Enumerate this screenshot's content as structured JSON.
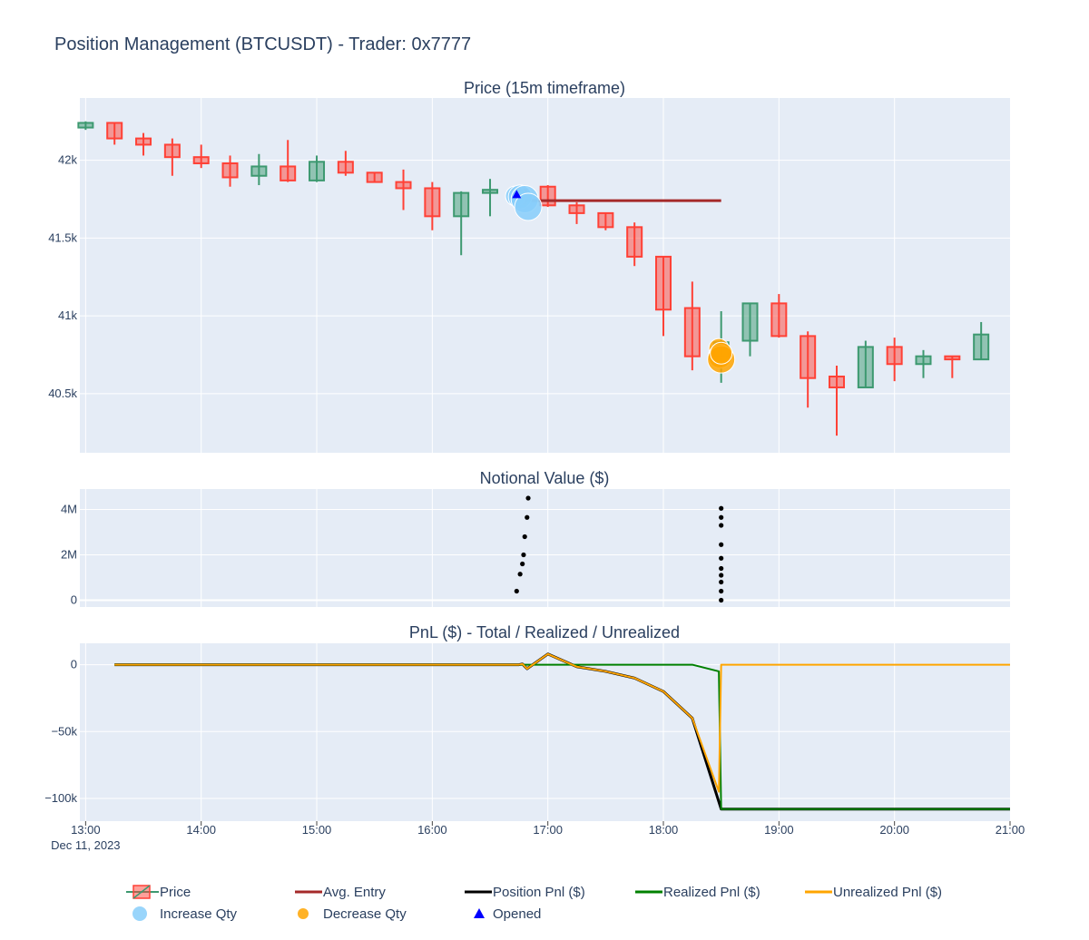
{
  "title": "Position Management (BTCUSDT) - Trader: 0x7777",
  "colors": {
    "increasing": "#3d9970",
    "increasing_fill": "rgba(61,153,112,0.5)",
    "decreasing": "#ff4136",
    "decreasing_fill": "rgba(255,65,54,0.5)",
    "avg_entry": "#a52a2a",
    "position_pnl": "#000000",
    "realized_pnl": "#008000",
    "unrealized_pnl": "#ffa500",
    "increase_qty": "#87cefa",
    "decrease_qty": "#ffa500",
    "opened": "#0000ff",
    "plot_bg": "#e5ecf6",
    "grid": "#ffffff",
    "text": "#2a3f5f"
  },
  "chart_data": {
    "x_axis": {
      "range": [
        12.95,
        21.0
      ],
      "ticks": [
        13,
        14,
        15,
        16,
        17,
        18,
        19,
        20,
        21
      ],
      "tick_labels": [
        "13:00",
        "14:00",
        "15:00",
        "16:00",
        "17:00",
        "18:00",
        "19:00",
        "20:00",
        "21:00"
      ],
      "date_label": "Dec 11, 2023"
    },
    "price": {
      "type": "candlestick",
      "title": "Price (15m timeframe)",
      "ylim": [
        40120,
        42400
      ],
      "yticks": [
        40500,
        41000,
        41500,
        42000
      ],
      "ytick_labels": [
        "40.5k",
        "41k",
        "41.5k",
        "42k"
      ],
      "candles": [
        [
          13.0,
          42210,
          42250,
          42195,
          42240
        ],
        [
          13.25,
          42240,
          42245,
          42100,
          42140
        ],
        [
          13.5,
          42140,
          42175,
          42030,
          42100
        ],
        [
          13.75,
          42100,
          42140,
          41900,
          42020
        ],
        [
          14.0,
          42020,
          42100,
          41950,
          41980
        ],
        [
          14.25,
          41980,
          42030,
          41830,
          41890
        ],
        [
          14.5,
          41900,
          42040,
          41840,
          41960
        ],
        [
          14.75,
          41960,
          42130,
          41860,
          41870
        ],
        [
          15.0,
          41870,
          42030,
          41860,
          41990
        ],
        [
          15.25,
          41990,
          42060,
          41900,
          41920
        ],
        [
          15.5,
          41920,
          41920,
          41860,
          41860
        ],
        [
          15.75,
          41860,
          41940,
          41680,
          41820
        ],
        [
          16.0,
          41820,
          41860,
          41550,
          41640
        ],
        [
          16.25,
          41640,
          41800,
          41390,
          41790
        ],
        [
          16.5,
          41790,
          41880,
          41640,
          41810
        ],
        [
          16.75,
          41810,
          41810,
          41700,
          41720
        ],
        [
          17.0,
          41830,
          41840,
          41700,
          41710
        ],
        [
          17.25,
          41710,
          41730,
          41590,
          41660
        ],
        [
          17.5,
          41660,
          41660,
          41550,
          41570
        ],
        [
          17.75,
          41570,
          41600,
          41320,
          41380
        ],
        [
          18.0,
          41380,
          41380,
          40870,
          41040
        ],
        [
          18.25,
          41050,
          41220,
          40650,
          40740
        ],
        [
          18.5,
          40740,
          41030,
          40570,
          40830
        ],
        [
          18.75,
          40840,
          41080,
          40740,
          41080
        ],
        [
          19.0,
          41080,
          41140,
          40860,
          40870
        ],
        [
          19.25,
          40870,
          40900,
          40410,
          40600
        ],
        [
          19.5,
          40610,
          40680,
          40230,
          40540
        ],
        [
          19.75,
          40540,
          40840,
          40540,
          40800
        ],
        [
          20.0,
          40800,
          40860,
          40580,
          40690
        ],
        [
          20.25,
          40690,
          40780,
          40600,
          40740
        ],
        [
          20.5,
          40740,
          40740,
          40600,
          40720
        ],
        [
          20.75,
          40720,
          40960,
          40720,
          40880
        ]
      ],
      "avg_entry": {
        "x": [
          16.75,
          18.5
        ],
        "y": [
          41740,
          41740
        ]
      },
      "increase_qty": [
        [
          16.72,
          41770,
          11
        ],
        [
          16.76,
          41765,
          13
        ],
        [
          16.8,
          41750,
          15
        ],
        [
          16.83,
          41700,
          15
        ]
      ],
      "decrease_qty": [
        [
          18.48,
          40790,
          11
        ],
        [
          18.49,
          40740,
          13
        ],
        [
          18.5,
          40720,
          15
        ],
        [
          18.5,
          40760,
          12
        ]
      ],
      "opened": [
        [
          16.73,
          41780
        ]
      ]
    },
    "notional": {
      "type": "scatter",
      "title": "Notional Value ($)",
      "ylim": [
        -300000,
        4900000
      ],
      "yticks": [
        0,
        2000000,
        4000000
      ],
      "ytick_labels": [
        "0",
        "2M",
        "4M"
      ],
      "points": [
        [
          16.73,
          400000
        ],
        [
          16.76,
          1150000
        ],
        [
          16.78,
          1600000
        ],
        [
          16.79,
          2000000
        ],
        [
          16.8,
          2800000
        ],
        [
          16.82,
          3650000
        ],
        [
          16.83,
          4500000
        ],
        [
          18.5,
          0
        ],
        [
          18.5,
          400000
        ],
        [
          18.5,
          800000
        ],
        [
          18.5,
          1100000
        ],
        [
          18.5,
          1400000
        ],
        [
          18.5,
          1850000
        ],
        [
          18.5,
          2450000
        ],
        [
          18.5,
          3300000
        ],
        [
          18.5,
          3650000
        ],
        [
          18.5,
          4050000
        ]
      ]
    },
    "pnl": {
      "type": "line",
      "title": "PnL ($) - Total / Realized / Unrealized",
      "ylim": [
        -117000,
        16000
      ],
      "yticks": [
        -100000,
        -50000,
        0
      ],
      "ytick_labels": [
        "−100k",
        "−50k",
        "0"
      ],
      "series": [
        {
          "name": "Position Pnl ($)",
          "x": [
            13.25,
            16.75,
            16.78,
            16.82,
            17.0,
            17.25,
            17.5,
            17.75,
            18.0,
            18.25,
            18.5,
            18.5,
            21.0
          ],
          "y": [
            0,
            0,
            500,
            -3000,
            8000,
            -1500,
            -5000,
            -10000,
            -20000,
            -40000,
            -108000,
            -108000,
            -108000
          ]
        },
        {
          "name": "Realized Pnl ($)",
          "x": [
            13.25,
            18.25,
            18.48,
            18.5,
            21.0
          ],
          "y": [
            0,
            0,
            -5000,
            -108000,
            -108000
          ]
        },
        {
          "name": "Unrealized Pnl ($)",
          "x": [
            13.25,
            16.75,
            16.78,
            16.82,
            17.0,
            17.25,
            17.5,
            17.75,
            18.0,
            18.25,
            18.48,
            18.5,
            21.0
          ],
          "y": [
            0,
            0,
            500,
            -3000,
            8000,
            -1500,
            -5000,
            -10000,
            -20000,
            -40000,
            -95000,
            0,
            0
          ]
        }
      ]
    },
    "legend": [
      {
        "label": "Price",
        "type": "candle"
      },
      {
        "label": "Avg. Entry",
        "type": "line",
        "color": "#a52a2a"
      },
      {
        "label": "Position Pnl ($)",
        "type": "line",
        "color": "#000000"
      },
      {
        "label": "Realized Pnl ($)",
        "type": "line",
        "color": "#008000"
      },
      {
        "label": "Unrealized Pnl ($)",
        "type": "line",
        "color": "#ffa500"
      },
      {
        "label": "Increase Qty",
        "type": "dot",
        "color": "#87cefa"
      },
      {
        "label": "Decrease Qty",
        "type": "dot",
        "color": "#ffa500"
      },
      {
        "label": "Opened",
        "type": "triangle",
        "color": "#0000ff"
      }
    ]
  }
}
